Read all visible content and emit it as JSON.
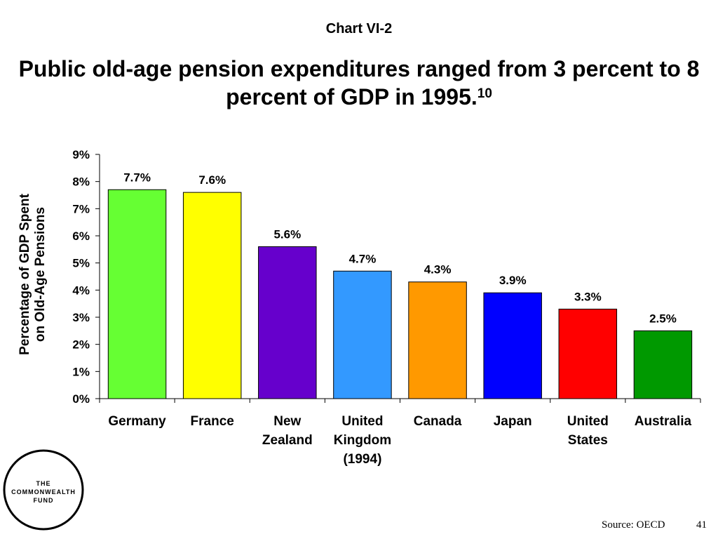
{
  "header": {
    "chart_label": "Chart VI-2",
    "title": "Public old-age pension expenditures ranged from 3 percent to 8 percent of GDP in 1995.",
    "title_footnote": "10"
  },
  "logo": {
    "lines": [
      "THE",
      "COMMONWEALTH",
      "FUND"
    ],
    "icon": "commonwealth-fund-logo"
  },
  "footer": {
    "source": "Source: OECD",
    "page_number": "41"
  },
  "chart_data": {
    "type": "bar",
    "title": "Public old-age pension expenditures ranged from 3 percent to 8 percent of GDP in 1995.",
    "ylabel_lines": [
      "Percentage of GDP Spent",
      "on Old-Age Pensions"
    ],
    "xlabel": "",
    "ylim": [
      0,
      9
    ],
    "yticks": [
      "0%",
      "1%",
      "2%",
      "3%",
      "4%",
      "5%",
      "6%",
      "7%",
      "8%",
      "9%"
    ],
    "grid": false,
    "categories": [
      [
        "Germany"
      ],
      [
        "France"
      ],
      [
        "New",
        "Zealand"
      ],
      [
        "United",
        "Kingdom",
        "(1994)"
      ],
      [
        "Canada"
      ],
      [
        "Japan"
      ],
      [
        "United",
        "States"
      ],
      [
        "Australia"
      ]
    ],
    "values": [
      7.7,
      7.6,
      5.6,
      4.7,
      4.3,
      3.9,
      3.3,
      2.5
    ],
    "value_labels": [
      "7.7%",
      "7.6%",
      "5.6%",
      "4.7%",
      "4.3%",
      "3.9%",
      "3.3%",
      "2.5%"
    ],
    "colors": [
      "#66ff33",
      "#ffff00",
      "#6600cc",
      "#3399ff",
      "#ff9900",
      "#0000ff",
      "#ff0000",
      "#009900"
    ]
  }
}
